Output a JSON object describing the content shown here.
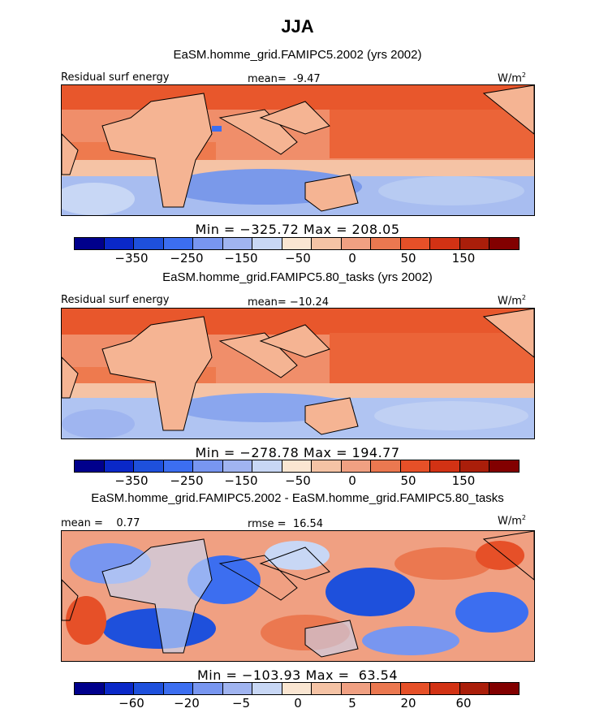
{
  "title": "JJA",
  "colors": {
    "ramp": [
      "#00008c",
      "#0a28c8",
      "#1e50dc",
      "#3c6ef0",
      "#7896f0",
      "#a0b4f0",
      "#c8d7f5",
      "#fae6d2",
      "#f5c3a5",
      "#f0a082",
      "#eb7850",
      "#e65028",
      "#d23214",
      "#aa1e0a",
      "#820000"
    ],
    "land_outline": "#000000"
  },
  "panels": [
    {
      "title": "EaSM.homme_grid.FAMIPC5.2002 (yrs 2002)",
      "left_label": "Residual surf energy",
      "center_label": "mean=  -9.47",
      "units": "W/m",
      "units_sup": "2",
      "stats": "Min = −325.72 Max = 208.05",
      "ticks": [
        "−350",
        "−250",
        "−150",
        "−50",
        "0",
        "50",
        "150"
      ]
    },
    {
      "title": "EaSM.homme_grid.FAMIPC5.80_tasks (yrs 2002)",
      "left_label": "Residual surf energy",
      "center_label": "mean= −10.24",
      "units": "W/m",
      "units_sup": "2",
      "stats": "Min = −278.78 Max = 194.77",
      "ticks": [
        "−350",
        "−250",
        "−150",
        "−50",
        "0",
        "50",
        "150"
      ]
    },
    {
      "title": "EaSM.homme_grid.FAMIPC5.2002 - EaSM.homme_grid.FAMIPC5.80_tasks",
      "left_label": "mean =    0.77",
      "center_label": "rmse =  16.54",
      "units": "W/m",
      "units_sup": "2",
      "stats": "Min = −103.93 Max =  63.54",
      "ticks": [
        "−60",
        "−20",
        "−5",
        "0",
        "5",
        "20",
        "60"
      ]
    }
  ],
  "chart_data": [
    {
      "type": "heatmap",
      "title": "EaSM.homme_grid.FAMIPC5.2002 (yrs 2002)",
      "variable": "Residual surf energy",
      "units": "W/m2",
      "season": "JJA",
      "mean": -9.47,
      "min": -325.72,
      "max": 208.05,
      "colorbar_levels": [
        -350,
        -300,
        -250,
        -200,
        -150,
        -100,
        -50,
        0,
        25,
        50,
        100,
        150,
        200
      ],
      "colorbar_tick_labels": [
        -350,
        -250,
        -150,
        -50,
        0,
        50,
        150
      ],
      "region": "tropics, Atlantic to Pacific",
      "pattern": "positive (red) in northern subtropics and equatorial Pacific; negative (blue) in southern hemisphere ocean"
    },
    {
      "type": "heatmap",
      "title": "EaSM.homme_grid.FAMIPC5.80_tasks (yrs 2002)",
      "variable": "Residual surf energy",
      "units": "W/m2",
      "season": "JJA",
      "mean": -10.24,
      "min": -278.78,
      "max": 194.77,
      "colorbar_levels": [
        -350,
        -300,
        -250,
        -200,
        -150,
        -100,
        -50,
        0,
        25,
        50,
        100,
        150,
        200
      ],
      "colorbar_tick_labels": [
        -350,
        -250,
        -150,
        -50,
        0,
        50,
        150
      ],
      "region": "tropics, Atlantic to Pacific",
      "pattern": "nearly identical to first panel"
    },
    {
      "type": "heatmap",
      "title": "EaSM.homme_grid.FAMIPC5.2002 - EaSM.homme_grid.FAMIPC5.80_tasks",
      "units": "W/m2",
      "season": "JJA",
      "mean": 0.77,
      "rmse": 16.54,
      "min": -103.93,
      "max": 63.54,
      "colorbar_levels": [
        -80,
        -60,
        -40,
        -20,
        -10,
        -5,
        -1,
        1,
        5,
        10,
        20,
        40,
        60,
        80
      ],
      "colorbar_tick_labels": [
        -60,
        -20,
        -5,
        0,
        5,
        20,
        60
      ],
      "region": "tropics, Atlantic to Pacific",
      "pattern": "noisy mixture of positive and negative differences"
    }
  ]
}
